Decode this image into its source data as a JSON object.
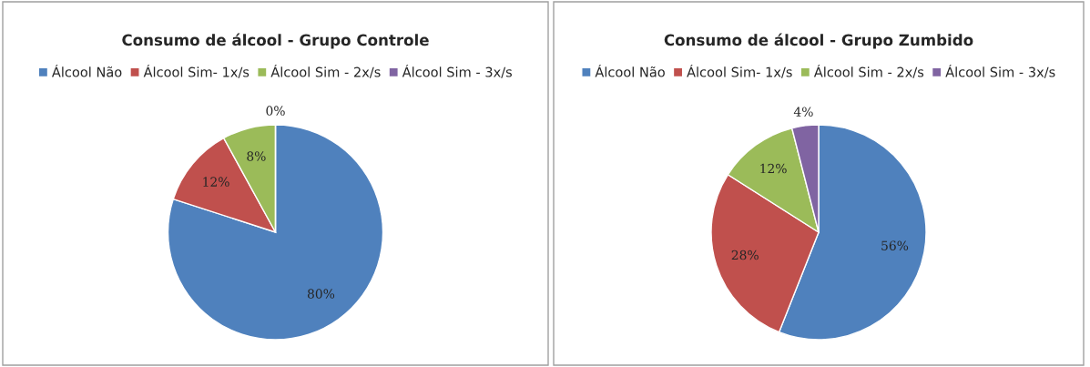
{
  "chart_data": [
    {
      "type": "pie",
      "title": "Consumo de álcool - Grupo Controle",
      "categories": [
        "Álcool Não",
        "Álcool Sim- 1x/s",
        "Álcool Sim - 2x/s",
        "Álcool Sim - 3x/s"
      ],
      "values": [
        80,
        12,
        8,
        0
      ],
      "value_labels": [
        "80%",
        "12%",
        "8%",
        "0%"
      ],
      "colors": [
        "#4f81bd",
        "#c0504d",
        "#9bbb59",
        "#8064a2"
      ],
      "legend": "top"
    },
    {
      "type": "pie",
      "title": "Consumo de álcool - Grupo Zumbido",
      "categories": [
        "Álcool Não",
        "Álcool Sim- 1x/s",
        "Álcool Sim - 2x/s",
        "Álcool Sim - 3x/s"
      ],
      "values": [
        56,
        28,
        12,
        4
      ],
      "value_labels": [
        "56%",
        "28%",
        "12%",
        "4%"
      ],
      "colors": [
        "#4f81bd",
        "#c0504d",
        "#9bbb59",
        "#8064a2"
      ],
      "legend": "top"
    }
  ]
}
